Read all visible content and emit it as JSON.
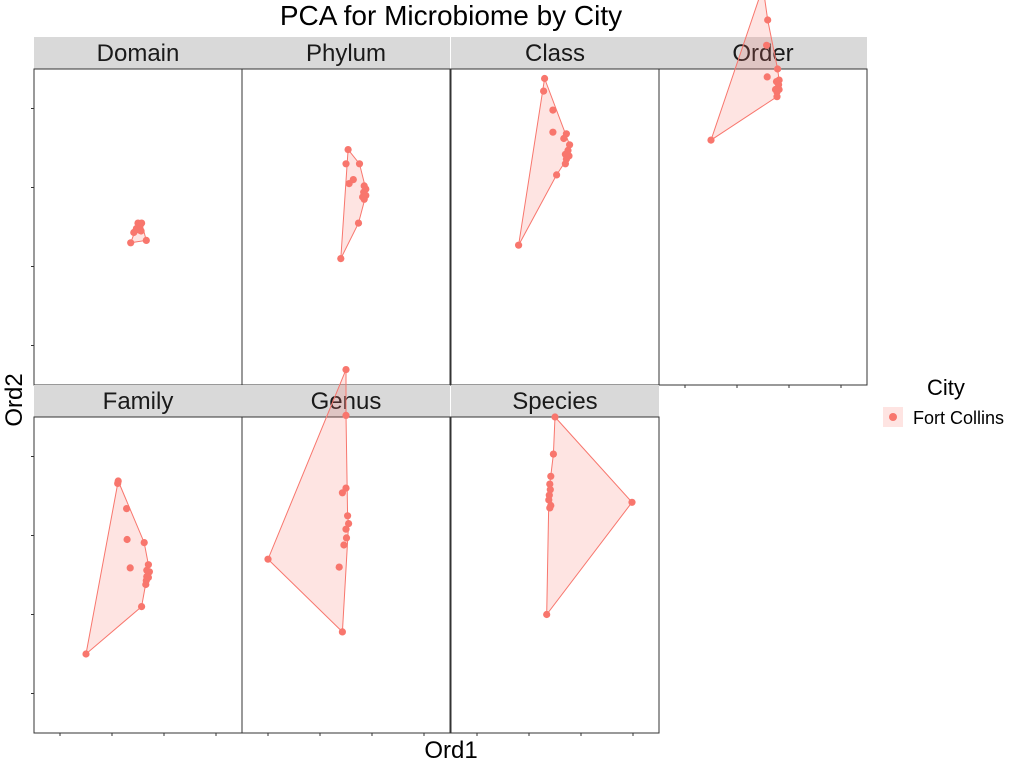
{
  "chart_data": {
    "type": "scatter",
    "title": "PCA for Microbiome by City",
    "xlabel": "Ord1",
    "ylabel": "Ord2",
    "xlim": [
      -1,
      3
    ],
    "ylim": [
      -3,
      1
    ],
    "grid": false,
    "hull": true,
    "colors": {
      "point": "#F8766D",
      "hull_fill": "#F8766D",
      "strip_bg": "#D9D9D9",
      "panel_border": "#333333"
    },
    "legend": {
      "title": "City",
      "position": "right",
      "entries": [
        "Fort Collins"
      ]
    },
    "facets": [
      {
        "name": "Domain",
        "points": [
          [
            1.0,
            -0.95
          ],
          [
            1.07,
            -0.95
          ],
          [
            1.02,
            -1.0
          ],
          [
            1.04,
            -0.98
          ],
          [
            0.97,
            -1.02
          ],
          [
            1.03,
            -1.04
          ],
          [
            1.06,
            -1.05
          ],
          [
            0.92,
            -1.07
          ],
          [
            1.16,
            -1.17
          ],
          [
            0.86,
            -1.2
          ]
        ],
        "hull": [
          [
            1.0,
            -0.95
          ],
          [
            1.07,
            -0.95
          ],
          [
            1.16,
            -1.17
          ],
          [
            0.86,
            -1.2
          ]
        ]
      },
      {
        "name": "Phylum",
        "points": [
          [
            1.04,
            -0.02
          ],
          [
            1.0,
            -0.2
          ],
          [
            1.26,
            -0.2
          ],
          [
            1.14,
            -0.4
          ],
          [
            1.06,
            -0.45
          ],
          [
            1.35,
            -0.48
          ],
          [
            1.38,
            -0.52
          ],
          [
            1.34,
            -0.56
          ],
          [
            1.38,
            -0.6
          ],
          [
            1.35,
            -0.65
          ],
          [
            1.32,
            -0.62
          ],
          [
            1.24,
            -0.95
          ],
          [
            0.9,
            -1.4
          ]
        ],
        "hull": [
          [
            1.04,
            -0.02
          ],
          [
            1.26,
            -0.2
          ],
          [
            1.38,
            -0.52
          ],
          [
            1.38,
            -0.6
          ],
          [
            1.24,
            -0.95
          ],
          [
            0.9,
            -1.4
          ]
        ]
      },
      {
        "name": "Class",
        "points": [
          [
            0.8,
            0.88
          ],
          [
            0.78,
            0.72
          ],
          [
            0.96,
            0.48
          ],
          [
            0.96,
            0.2
          ],
          [
            1.22,
            0.18
          ],
          [
            1.17,
            0.12
          ],
          [
            1.28,
            0.04
          ],
          [
            1.25,
            -0.03
          ],
          [
            1.2,
            -0.08
          ],
          [
            1.27,
            -0.1
          ],
          [
            1.22,
            -0.14
          ],
          [
            1.2,
            -0.2
          ],
          [
            1.03,
            -0.34
          ],
          [
            0.3,
            -1.23
          ]
        ],
        "hull": [
          [
            0.8,
            0.88
          ],
          [
            1.28,
            0.04
          ],
          [
            1.27,
            -0.1
          ],
          [
            1.03,
            -0.34
          ],
          [
            0.3,
            -1.23
          ]
        ]
      },
      {
        "name": "Order",
        "points": [
          [
            1.0,
            2.04
          ],
          [
            1.0,
            1.98
          ],
          [
            1.09,
            1.62
          ],
          [
            1.07,
            1.3
          ],
          [
            1.28,
            1.0
          ],
          [
            1.08,
            0.9
          ],
          [
            1.26,
            0.84
          ],
          [
            1.31,
            0.86
          ],
          [
            1.3,
            0.8
          ],
          [
            1.24,
            0.74
          ],
          [
            1.31,
            0.74
          ],
          [
            1.27,
            0.71
          ],
          [
            1.27,
            0.65
          ],
          [
            0.0,
            0.1
          ]
        ],
        "hull": [
          [
            1.0,
            2.04
          ],
          [
            1.09,
            1.62
          ],
          [
            1.28,
            1.0
          ],
          [
            1.31,
            0.86
          ],
          [
            1.31,
            0.74
          ],
          [
            1.27,
            0.65
          ],
          [
            0.0,
            0.1
          ]
        ]
      },
      {
        "name": "Family",
        "points": [
          [
            0.62,
            0.19
          ],
          [
            0.61,
            0.16
          ],
          [
            0.78,
            -0.16
          ],
          [
            0.79,
            -0.55
          ],
          [
            1.12,
            -0.59
          ],
          [
            1.2,
            -0.87
          ],
          [
            1.17,
            -0.94
          ],
          [
            1.22,
            -0.96
          ],
          [
            1.17,
            -1.02
          ],
          [
            1.2,
            -1.03
          ],
          [
            1.16,
            -1.07
          ],
          [
            1.15,
            -1.12
          ],
          [
            0.85,
            -0.91
          ],
          [
            1.07,
            -1.4
          ],
          [
            0.0,
            -2.0
          ]
        ],
        "hull": [
          [
            0.62,
            0.19
          ],
          [
            1.12,
            -0.59
          ],
          [
            1.2,
            -0.87
          ],
          [
            1.22,
            -0.96
          ],
          [
            1.16,
            -1.07
          ],
          [
            1.07,
            -1.4
          ],
          [
            0.0,
            -2.0
          ]
        ]
      },
      {
        "name": "Genus",
        "points": [
          [
            1.0,
            1.6
          ],
          [
            1.0,
            1.02
          ],
          [
            1.0,
            0.1
          ],
          [
            0.93,
            0.04
          ],
          [
            1.03,
            -0.25
          ],
          [
            1.05,
            -0.35
          ],
          [
            1.0,
            -0.42
          ],
          [
            1.01,
            -0.53
          ],
          [
            0.96,
            -0.62
          ],
          [
            0.87,
            -0.9
          ],
          [
            -0.5,
            -0.8
          ],
          [
            0.93,
            -1.72
          ]
        ],
        "hull": [
          [
            1.0,
            1.6
          ],
          [
            1.0,
            1.02
          ],
          [
            1.03,
            -0.25
          ],
          [
            1.05,
            -0.35
          ],
          [
            0.93,
            -1.72
          ],
          [
            -0.5,
            -0.8
          ]
        ]
      },
      {
        "name": "Species",
        "points": [
          [
            1.0,
            1.0
          ],
          [
            0.97,
            0.53
          ],
          [
            0.92,
            0.25
          ],
          [
            0.9,
            0.15
          ],
          [
            0.91,
            0.08
          ],
          [
            0.89,
            0.01
          ],
          [
            0.88,
            -0.05
          ],
          [
            0.92,
            -0.12
          ],
          [
            0.9,
            -0.15
          ],
          [
            2.48,
            -0.08
          ],
          [
            0.84,
            -1.5
          ]
        ],
        "hull": [
          [
            1.0,
            1.0
          ],
          [
            2.48,
            -0.08
          ],
          [
            0.84,
            -1.5
          ],
          [
            0.88,
            -0.05
          ],
          [
            0.9,
            0.15
          ],
          [
            0.97,
            0.53
          ]
        ]
      }
    ]
  }
}
